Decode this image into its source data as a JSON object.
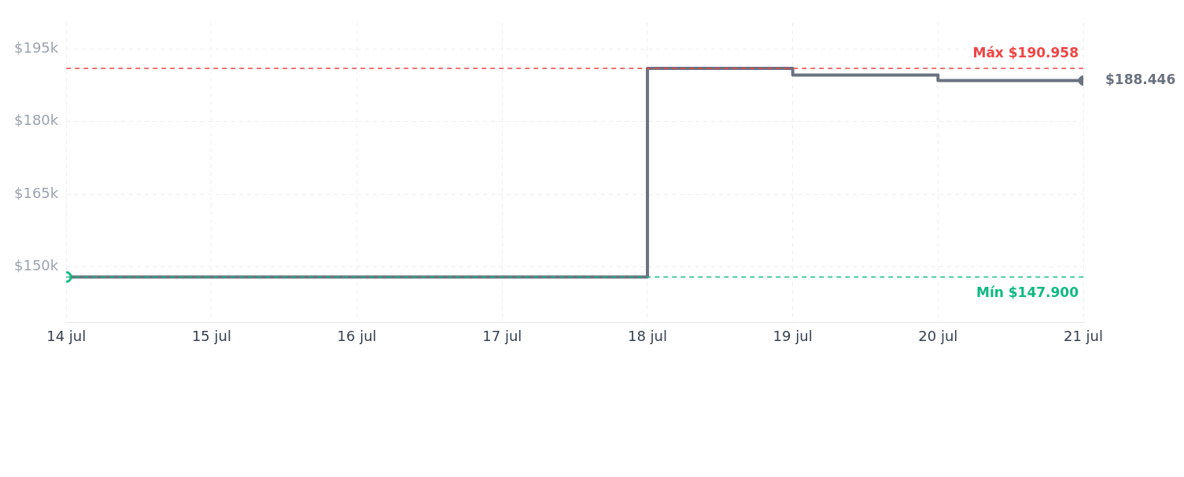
{
  "chart_data": {
    "type": "step",
    "x": [
      "--07-14",
      "--07-15",
      "--07-16",
      "--07-17",
      "--07-18",
      "--07-19",
      "--07-20",
      "--07-21"
    ],
    "series": [
      {
        "color": "#6b7280",
        "values": [
          147.9,
          147.9,
          147.9,
          147.9,
          190.958,
          189.6,
          188.446,
          188.446
        ]
      }
    ],
    "xlim": [
      "--07-14",
      "--07-21"
    ],
    "xticks": [
      {
        "value": "--07-14",
        "label": "14 jul"
      },
      {
        "value": "--07-15",
        "label": "15 jul"
      },
      {
        "value": "--07-16",
        "label": "16 jul"
      },
      {
        "value": "--07-17",
        "label": "17 jul"
      },
      {
        "value": "--07-18",
        "label": "18 jul"
      },
      {
        "value": "--07-19",
        "label": "19 jul"
      },
      {
        "value": "--07-20",
        "label": "20 jul"
      },
      {
        "value": "--07-21",
        "label": "21 jul"
      }
    ],
    "ylim": [
      138.5,
      200.4
    ],
    "yticks": [
      {
        "value": 150,
        "label": "$150k"
      },
      {
        "value": 165,
        "label": "$165k"
      },
      {
        "value": 180,
        "label": "$180k"
      },
      {
        "value": 195,
        "label": "$195k"
      }
    ],
    "ref_lines": [
      {
        "axis": "y",
        "value": 190.958,
        "label": "Máx $190.958",
        "color": "#ef4444",
        "line_style": "dashed"
      },
      {
        "axis": "y",
        "value": 147.9,
        "label": "Mín $147.900",
        "color": "#10b981",
        "line_style": "dashed"
      }
    ],
    "annotations": [
      {
        "text": "$188.446",
        "x": "--07-21",
        "y": 188.446
      }
    ],
    "line_style": "solid",
    "grid": true,
    "legend": false
  }
}
